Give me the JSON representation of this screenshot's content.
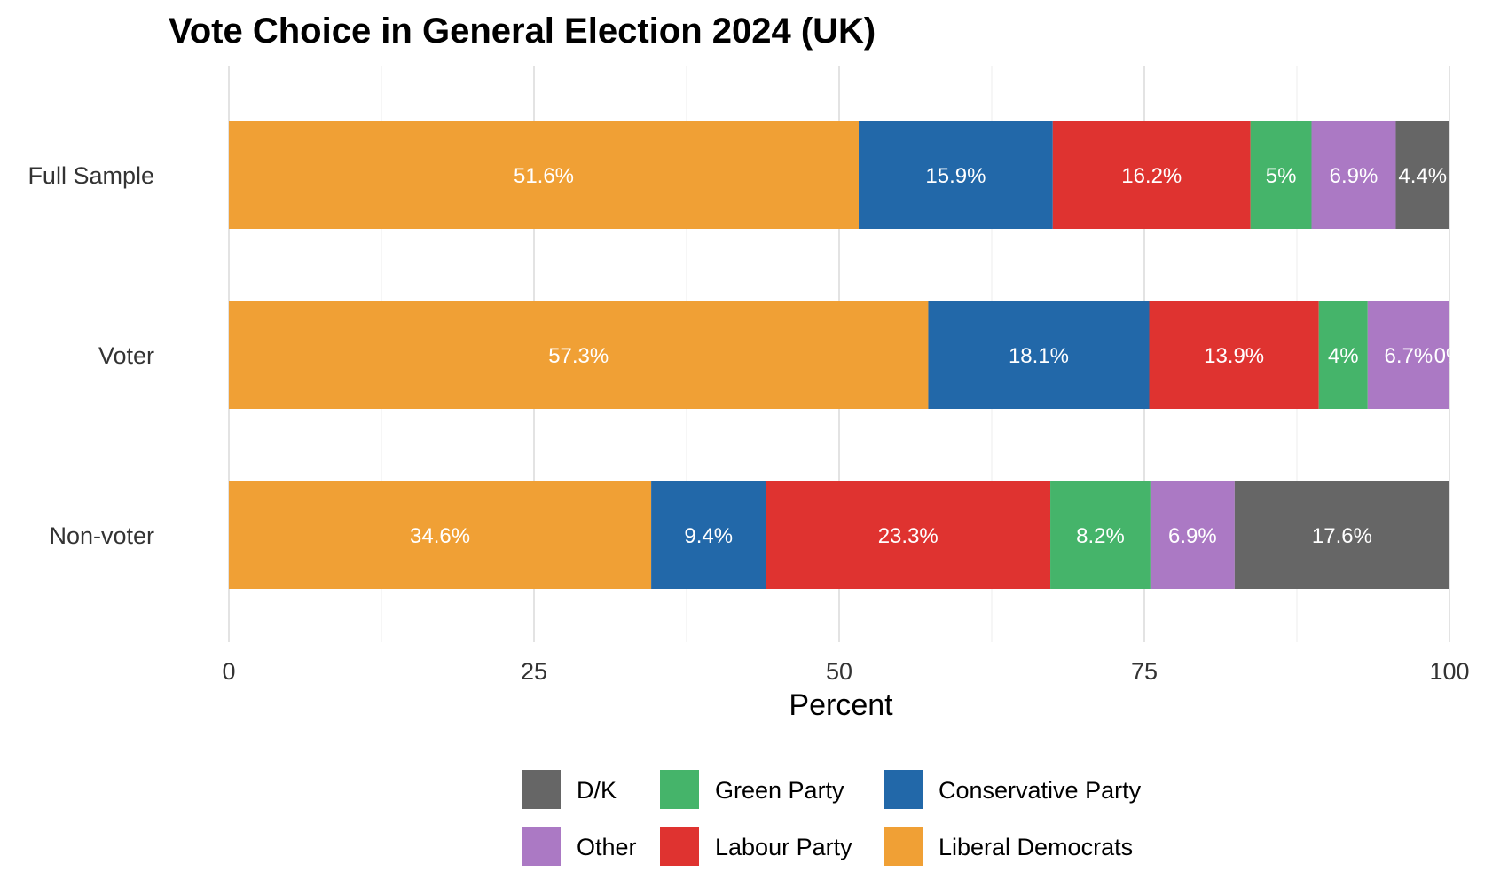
{
  "chart_data": {
    "type": "bar",
    "orientation": "horizontal",
    "stacked": true,
    "title": "Vote Choice in General Election 2024 (UK)",
    "xlabel": "Percent",
    "ylabel": "",
    "xlim": [
      0,
      100
    ],
    "xticks": [
      "0",
      "25",
      "50",
      "75",
      "100"
    ],
    "grid": true,
    "legend_position": "bottom",
    "categories": [
      "Full Sample",
      "Voter",
      "Non-voter"
    ],
    "series": [
      {
        "name": "Liberal Democrats",
        "color": "#F0A035",
        "values": [
          51.6,
          57.3,
          34.6
        ],
        "labels": [
          "51.6%",
          "57.3%",
          "34.6%"
        ]
      },
      {
        "name": "Conservative Party",
        "color": "#2268A9",
        "values": [
          15.9,
          18.1,
          9.4
        ],
        "labels": [
          "15.9%",
          "18.1%",
          "9.4%"
        ]
      },
      {
        "name": "Labour Party",
        "color": "#DF3330",
        "values": [
          16.2,
          13.9,
          23.3
        ],
        "labels": [
          "16.2%",
          "13.9%",
          "23.3%"
        ]
      },
      {
        "name": "Green Party",
        "color": "#45B46A",
        "values": [
          5,
          4,
          8.2
        ],
        "labels": [
          "5%",
          "4%",
          "8.2%"
        ]
      },
      {
        "name": "Other",
        "color": "#AB79C4",
        "values": [
          6.9,
          6.7,
          6.9
        ],
        "labels": [
          "6.9%",
          "6.7%",
          "6.9%"
        ]
      },
      {
        "name": "D/K",
        "color": "#666666",
        "values": [
          4.4,
          0,
          17.6
        ],
        "labels": [
          "4.4%",
          "0%",
          "17.6%"
        ]
      }
    ],
    "legend_order": [
      [
        "D/K",
        "Green Party",
        "Conservative Party"
      ],
      [
        "Other",
        "Labour Party",
        "Liberal Democrats"
      ]
    ]
  }
}
